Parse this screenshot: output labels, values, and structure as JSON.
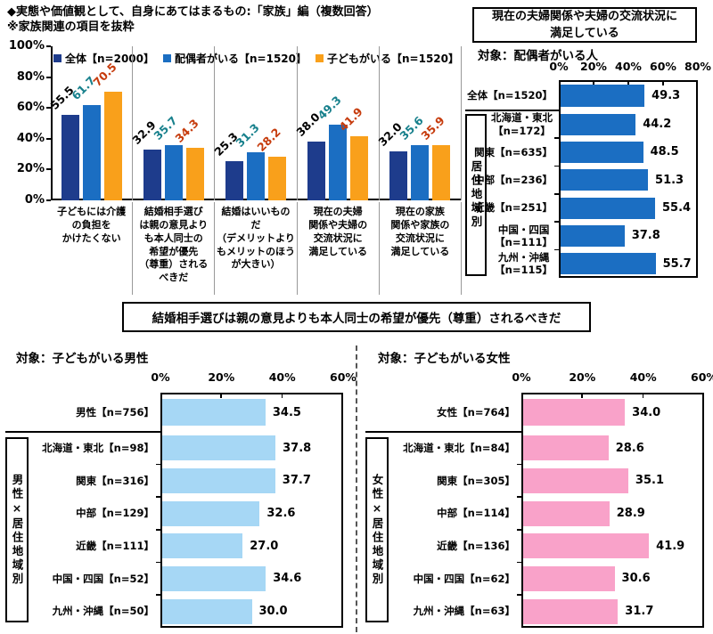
{
  "page": {
    "title_line1": "◆実態や価値観として、自身にあてはまるもの:「家族」編（複数回答）",
    "title_line2": "※家族関連の項目を抜粋",
    "bottom_panel_title": "結婚相手選びは親の意見よりも本人同士の希望が優先（尊重）されるべきだ"
  },
  "colors": {
    "series_total_navy": "#1E3C8C",
    "series_spouse_blue": "#1B6EC2",
    "series_child_orange": "#F9A01B",
    "male_bar_lightblue": "#A6D7F5",
    "female_bar_pink": "#F9A2C9",
    "value_label_teal": "#17808C",
    "value_label_red": "#C63B0C"
  },
  "chart_data": [
    {
      "id": "family-values",
      "type": "bar",
      "title": "◆実態や価値観として、自身にあてはまるもの:「家族」編（複数回答）",
      "subtitle": "※家族関連の項目を抜粋",
      "ylim": [
        0,
        100
      ],
      "y_ticks": [
        "100%",
        "80%",
        "60%",
        "40%",
        "20%",
        "0%"
      ],
      "grid": false,
      "legend_position": "top-inside",
      "categories": [
        "子どもには介護\nの負担を\nかけたくない",
        "結婚相手選び\nは親の意見より\nも本人同士の\n希望が優先\n（尊重）される\nべきだ",
        "結婚はいいもの\nだ（デメリットより\nもメリットのほう\nが大きい）",
        "現在の夫婦\n関係や夫婦の\n交流状況に\n満足している",
        "現在の家族\n関係や家族の\n交流状況に\n満足している"
      ],
      "series": [
        {
          "name": "全体【n=2000】",
          "color": "#1E3C8C",
          "label_color": "#000000",
          "values": [
            55.5,
            32.9,
            25.3,
            38.0,
            32.0
          ],
          "labels": [
            "55.5",
            "32.9",
            "25.3",
            "38.0",
            "32.0"
          ]
        },
        {
          "name": "配偶者がいる【n=1520】",
          "color": "#1B6EC2",
          "label_color": "#17808C",
          "values": [
            61.7,
            35.7,
            31.3,
            49.3,
            35.6
          ],
          "labels": [
            "61.7",
            "35.7",
            "31.3",
            "49.3",
            "35.6"
          ]
        },
        {
          "name": "子どもがいる【n=1520】",
          "color": "#F9A01B",
          "label_color": "#C63B0C",
          "values": [
            70.5,
            34.3,
            28.2,
            41.9,
            35.9
          ],
          "labels": [
            "70.5",
            "34.3",
            "28.2",
            "41.9",
            "35.9"
          ]
        }
      ]
    },
    {
      "id": "spouse-satisfaction",
      "type": "bar_horizontal",
      "title": "現在の夫婦関係や夫婦の交流状況に\n満足している",
      "subject": "対象：配偶者がいる人",
      "xlim": [
        0,
        80
      ],
      "x_ticks": [
        "0%",
        "20%",
        "40%",
        "60%",
        "80%"
      ],
      "bar_color": "#1B6EC2",
      "group_label": "居住地域別",
      "total_row": {
        "label": "全体【n=1520】",
        "value": 49.3,
        "display": "49.3"
      },
      "rows": [
        {
          "label": "北海道・東北\n【n=172】",
          "value": 44.2,
          "display": "44.2"
        },
        {
          "label": "関東【n=635】",
          "value": 48.5,
          "display": "48.5"
        },
        {
          "label": "中部【n=236】",
          "value": 51.3,
          "display": "51.3"
        },
        {
          "label": "近畿【n=251】",
          "value": 55.4,
          "display": "55.4"
        },
        {
          "label": "中国・四国\n【n=111】",
          "value": 37.8,
          "display": "37.8"
        },
        {
          "label": "九州・沖縄\n【n=115】",
          "value": 55.7,
          "display": "55.7"
        }
      ]
    },
    {
      "id": "male-by-region",
      "type": "bar_horizontal",
      "subject": "対象：子どもがいる男性",
      "xlim": [
        0,
        60
      ],
      "x_ticks": [
        "0%",
        "20%",
        "40%",
        "60%"
      ],
      "bar_color": "#A6D7F5",
      "group_label": "男性×居住地域別",
      "total_row": {
        "label": "男性【n=756】",
        "value": 34.5,
        "display": "34.5"
      },
      "rows": [
        {
          "label": "北海道・東北【n=98】",
          "value": 37.8,
          "display": "37.8"
        },
        {
          "label": "関東【n=316】",
          "value": 37.7,
          "display": "37.7"
        },
        {
          "label": "中部【n=129】",
          "value": 32.6,
          "display": "32.6"
        },
        {
          "label": "近畿【n=111】",
          "value": 27.0,
          "display": "27.0"
        },
        {
          "label": "中国・四国【n=52】",
          "value": 34.6,
          "display": "34.6"
        },
        {
          "label": "九州・沖縄【n=50】",
          "value": 30.0,
          "display": "30.0"
        }
      ]
    },
    {
      "id": "female-by-region",
      "type": "bar_horizontal",
      "subject": "対象：子どもがいる女性",
      "xlim": [
        0,
        60
      ],
      "x_ticks": [
        "0%",
        "20%",
        "40%",
        "60%"
      ],
      "bar_color": "#F9A2C9",
      "group_label": "女性×居住地域別",
      "total_row": {
        "label": "女性【n=764】",
        "value": 34.0,
        "display": "34.0"
      },
      "rows": [
        {
          "label": "北海道・東北【n=84】",
          "value": 28.6,
          "display": "28.6"
        },
        {
          "label": "関東【n=305】",
          "value": 35.1,
          "display": "35.1"
        },
        {
          "label": "中部【n=114】",
          "value": 28.9,
          "display": "28.9"
        },
        {
          "label": "近畿【n=136】",
          "value": 41.9,
          "display": "41.9"
        },
        {
          "label": "中国・四国【n=62】",
          "value": 30.6,
          "display": "30.6"
        },
        {
          "label": "九州・沖縄【n=63】",
          "value": 31.7,
          "display": "31.7"
        }
      ]
    }
  ]
}
